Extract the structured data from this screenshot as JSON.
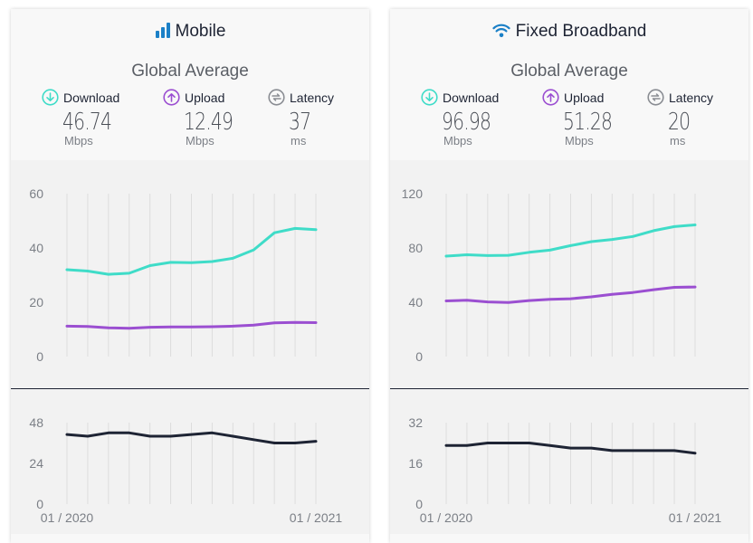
{
  "colors": {
    "download": "#3fdcc8",
    "upload": "#9b4fd1",
    "latency": "#1e2434",
    "mobile_icon": "#1b80c7",
    "grid": "#dddddd"
  },
  "panels": [
    {
      "title": "Mobile",
      "icon": "signal-bars-icon",
      "subtitle": "Global Average",
      "metrics": [
        {
          "label": "Download",
          "value": "46.74",
          "unit": "Mbps",
          "icon": "download-arrow-icon"
        },
        {
          "label": "Upload",
          "value": "12.49",
          "unit": "Mbps",
          "icon": "upload-arrow-icon"
        },
        {
          "label": "Latency",
          "value": "37",
          "unit": "ms",
          "icon": "latency-gauge-icon"
        }
      ]
    },
    {
      "title": "Fixed Broadband",
      "icon": "wifi-icon",
      "subtitle": "Global Average",
      "metrics": [
        {
          "label": "Download",
          "value": "96.98",
          "unit": "Mbps",
          "icon": "download-arrow-icon"
        },
        {
          "label": "Upload",
          "value": "51.28",
          "unit": "Mbps",
          "icon": "upload-arrow-icon"
        },
        {
          "label": "Latency",
          "value": "20",
          "unit": "ms",
          "icon": "latency-gauge-icon"
        }
      ]
    }
  ],
  "chart_data": [
    {
      "type": "line",
      "x": [
        "01 / 2020",
        "",
        "",
        "",
        "",
        "",
        "",
        "",
        "",
        "",
        "",
        "",
        "01 / 2021"
      ],
      "xticks": [
        "01 / 2020",
        "01 / 2021"
      ],
      "yticks": [
        0,
        20,
        40,
        60
      ],
      "ylim": [
        0,
        60
      ],
      "grid": true,
      "series": [
        {
          "name": "Download",
          "values": [
            32.0,
            31.5,
            30.3,
            30.7,
            33.5,
            34.7,
            34.6,
            35.0,
            36.2,
            39.3,
            45.6,
            47.2,
            46.74
          ]
        },
        {
          "name": "Upload",
          "values": [
            11.2,
            11.1,
            10.6,
            10.4,
            10.8,
            10.9,
            10.9,
            11.0,
            11.2,
            11.6,
            12.4,
            12.6,
            12.49
          ]
        }
      ]
    },
    {
      "type": "line",
      "x": [
        "01 / 2020",
        "",
        "",
        "",
        "",
        "",
        "",
        "",
        "",
        "",
        "",
        "",
        "01 / 2021"
      ],
      "xticks": [
        "01 / 2020",
        "01 / 2021"
      ],
      "yticks": [
        0,
        24,
        48
      ],
      "ylim": [
        0,
        48
      ],
      "grid": true,
      "series": [
        {
          "name": "Latency",
          "values": [
            41,
            40,
            42,
            42,
            40,
            40,
            41,
            42,
            40,
            38,
            36,
            36,
            37
          ]
        }
      ]
    },
    {
      "type": "line",
      "x": [
        "01 / 2020",
        "",
        "",
        "",
        "",
        "",
        "",
        "",
        "",
        "",
        "",
        "",
        "01 / 2021"
      ],
      "xticks": [
        "01 / 2020",
        "01 / 2021"
      ],
      "yticks": [
        0,
        40,
        80,
        120
      ],
      "ylim": [
        0,
        120
      ],
      "grid": true,
      "series": [
        {
          "name": "Download",
          "values": [
            74.0,
            75.0,
            74.4,
            74.6,
            76.8,
            78.4,
            81.7,
            84.7,
            86.3,
            88.5,
            92.7,
            95.7,
            96.98
          ]
        },
        {
          "name": "Upload",
          "values": [
            41.0,
            41.5,
            40.3,
            39.8,
            41.3,
            42.2,
            42.6,
            44.0,
            45.8,
            47.2,
            49.3,
            51.0,
            51.28
          ]
        }
      ]
    },
    {
      "type": "line",
      "x": [
        "01 / 2020",
        "",
        "",
        "",
        "",
        "",
        "",
        "",
        "",
        "",
        "",
        "",
        "01 / 2021"
      ],
      "xticks": [
        "01 / 2020",
        "01 / 2021"
      ],
      "yticks": [
        0,
        16,
        32
      ],
      "ylim": [
        0,
        32
      ],
      "grid": true,
      "series": [
        {
          "name": "Latency",
          "values": [
            23,
            23,
            24,
            24,
            24,
            23,
            22,
            22,
            21,
            21,
            21,
            21,
            20
          ]
        }
      ]
    }
  ]
}
